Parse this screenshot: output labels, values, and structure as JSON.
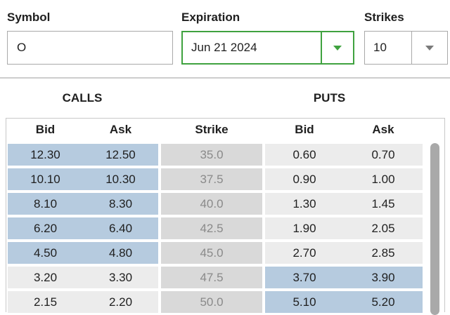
{
  "controls": {
    "symbol": {
      "label": "Symbol",
      "value": "O"
    },
    "expiration": {
      "label": "Expiration",
      "value": "Jun 21 2024"
    },
    "strikes": {
      "label": "Strikes",
      "value": "10"
    }
  },
  "chain": {
    "calls_title": "CALLS",
    "puts_title": "PUTS",
    "columns": {
      "call_bid": "Bid",
      "call_ask": "Ask",
      "strike": "Strike",
      "put_bid": "Bid",
      "put_ask": "Ask"
    },
    "rows": [
      {
        "strike": "35.0",
        "call_bid": "12.30",
        "call_ask": "12.50",
        "put_bid": "0.60",
        "put_ask": "0.70",
        "call_highlighted": true,
        "put_highlighted": false
      },
      {
        "strike": "37.5",
        "call_bid": "10.10",
        "call_ask": "10.30",
        "put_bid": "0.90",
        "put_ask": "1.00",
        "call_highlighted": true,
        "put_highlighted": false
      },
      {
        "strike": "40.0",
        "call_bid": "8.10",
        "call_ask": "8.30",
        "put_bid": "1.30",
        "put_ask": "1.45",
        "call_highlighted": true,
        "put_highlighted": false
      },
      {
        "strike": "42.5",
        "call_bid": "6.20",
        "call_ask": "6.40",
        "put_bid": "1.90",
        "put_ask": "2.05",
        "call_highlighted": true,
        "put_highlighted": false
      },
      {
        "strike": "45.0",
        "call_bid": "4.50",
        "call_ask": "4.80",
        "put_bid": "2.70",
        "put_ask": "2.85",
        "call_highlighted": true,
        "put_highlighted": false
      },
      {
        "strike": "47.5",
        "call_bid": "3.20",
        "call_ask": "3.30",
        "put_bid": "3.70",
        "put_ask": "3.90",
        "call_highlighted": false,
        "put_highlighted": true
      },
      {
        "strike": "50.0",
        "call_bid": "2.15",
        "call_ask": "2.20",
        "put_bid": "5.10",
        "put_ask": "5.20",
        "call_highlighted": false,
        "put_highlighted": true
      }
    ]
  },
  "colors": {
    "accent_green": "#3fa23f",
    "itm_highlight_blue": "#b6cbdf",
    "strike_column_gray": "#d9d9d9",
    "otm_cell_gray": "#ececec",
    "scrollbar_thumb": "#a9a9a9"
  }
}
